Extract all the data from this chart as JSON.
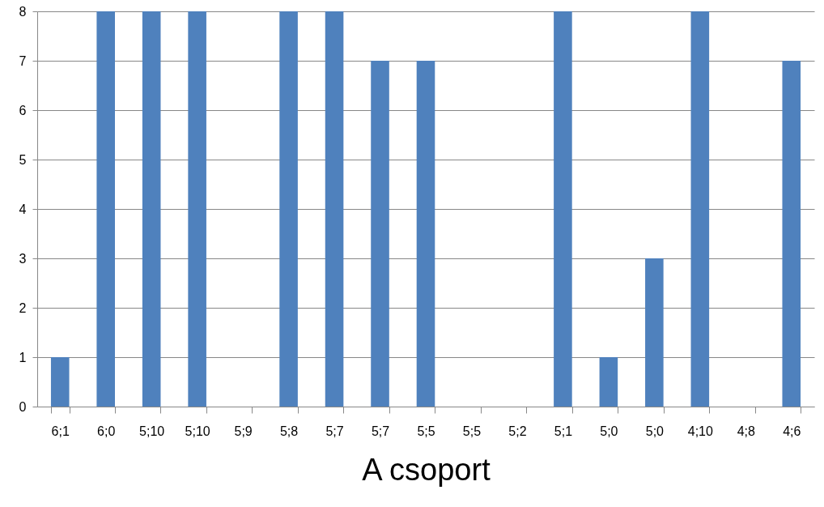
{
  "chart_data": {
    "type": "bar",
    "xlabel": "A csoport",
    "categories": [
      "6;1",
      "6;0",
      "5;10",
      "5;10",
      "5;9",
      "5;8",
      "5;7",
      "5;7",
      "5;5",
      "5;5",
      "5;2",
      "5;1",
      "5;0",
      "5;0",
      "4;10",
      "4;8",
      "4;6"
    ],
    "values": [
      1,
      8,
      8,
      8,
      0,
      8,
      8,
      7,
      7,
      0,
      0,
      8,
      1,
      3,
      8,
      0,
      7
    ],
    "color": "#4f81bd",
    "ylim": [
      0,
      8
    ],
    "yticks": [
      0,
      1,
      2,
      3,
      4,
      5,
      6,
      7,
      8
    ],
    "grid": "y"
  }
}
